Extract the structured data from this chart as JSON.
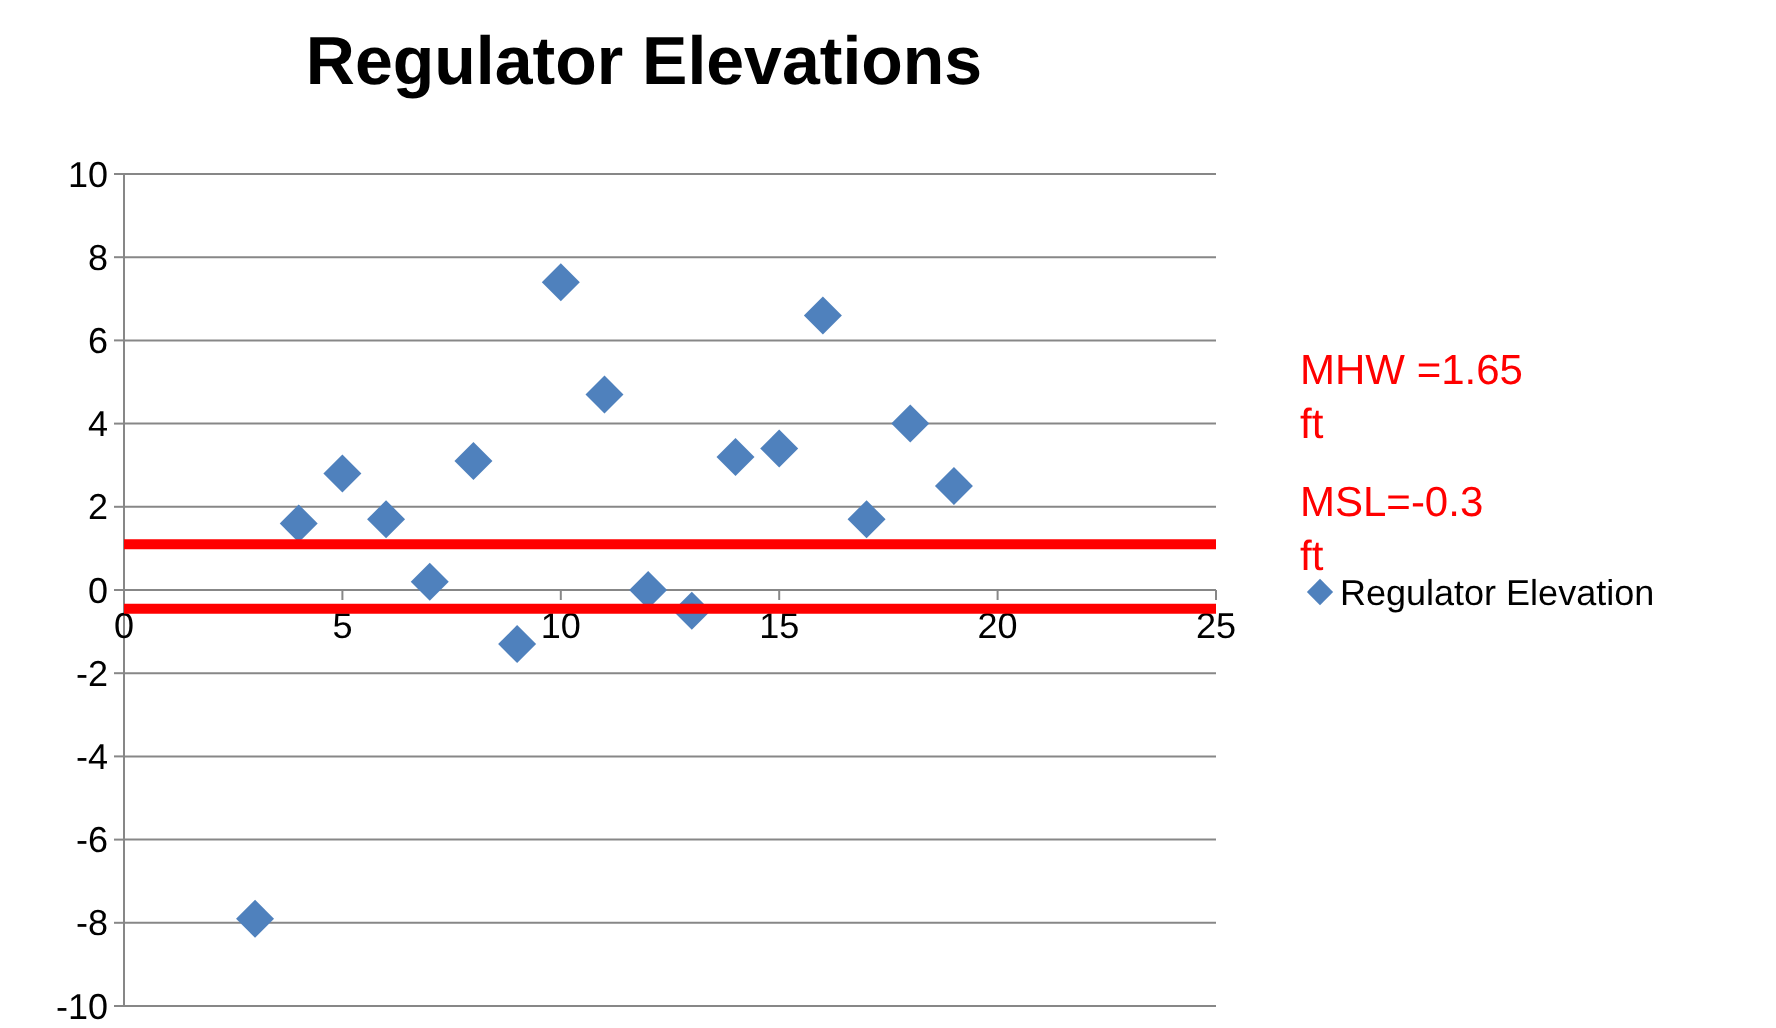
{
  "chart_data": {
    "type": "scatter",
    "title": "Regulator Elevations",
    "series": [
      {
        "name": "Regulator Elevation",
        "color": "#4f81bd",
        "x": [
          3,
          4,
          5,
          6,
          7,
          8,
          9,
          10,
          11,
          12,
          13,
          14,
          15,
          16,
          17,
          18,
          19
        ],
        "values": [
          -7.9,
          1.6,
          2.8,
          1.7,
          0.2,
          3.1,
          -1.3,
          7.4,
          4.7,
          0,
          -0.5,
          3.2,
          3.4,
          6.6,
          1.7,
          4.0,
          2.5
        ]
      }
    ],
    "xlim": [
      0,
      25
    ],
    "xticks": [
      0,
      5,
      10,
      15,
      20,
      25
    ],
    "ylim": [
      -10,
      10
    ],
    "yticks": [
      -10,
      -8,
      -6,
      -4,
      -2,
      0,
      2,
      4,
      6,
      8,
      10
    ],
    "grid": "y",
    "marker": "diamond",
    "legend": "right",
    "ref_lines": [
      {
        "axis": "y",
        "value": 1.1,
        "color": "#ff0000"
      },
      {
        "axis": "y",
        "value": -0.45,
        "color": "#ff0000"
      }
    ],
    "annotations": [
      "MHW =1.65 ft",
      "MSL=-0.3 ft"
    ]
  }
}
